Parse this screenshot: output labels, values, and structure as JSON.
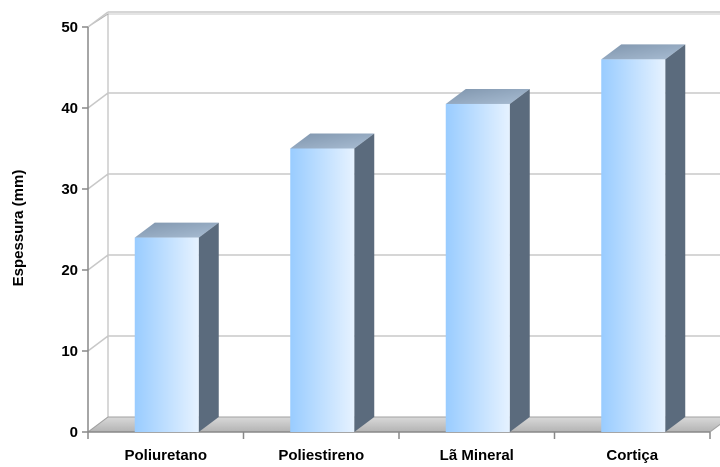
{
  "chart_data": {
    "type": "bar",
    "categories": [
      "Poliuretano",
      "Poliestireno",
      "Lã Mineral",
      "Cortiça"
    ],
    "values": [
      24,
      35,
      40.5,
      46
    ],
    "title": "",
    "xlabel": "",
    "ylabel": "Espessura (mm)",
    "ylim": [
      0,
      50
    ],
    "yticks": [
      0,
      10,
      20,
      30,
      40,
      50
    ],
    "grid": true,
    "style": "3d-column",
    "colors": {
      "bar_front_left": "#99ccff",
      "bar_front_right": "#e6f2ff",
      "bar_top": "#8fa8c4",
      "bar_side": "#5b6b7d",
      "grid": "#c8c8c8",
      "floor": "#c0c0c0"
    }
  }
}
